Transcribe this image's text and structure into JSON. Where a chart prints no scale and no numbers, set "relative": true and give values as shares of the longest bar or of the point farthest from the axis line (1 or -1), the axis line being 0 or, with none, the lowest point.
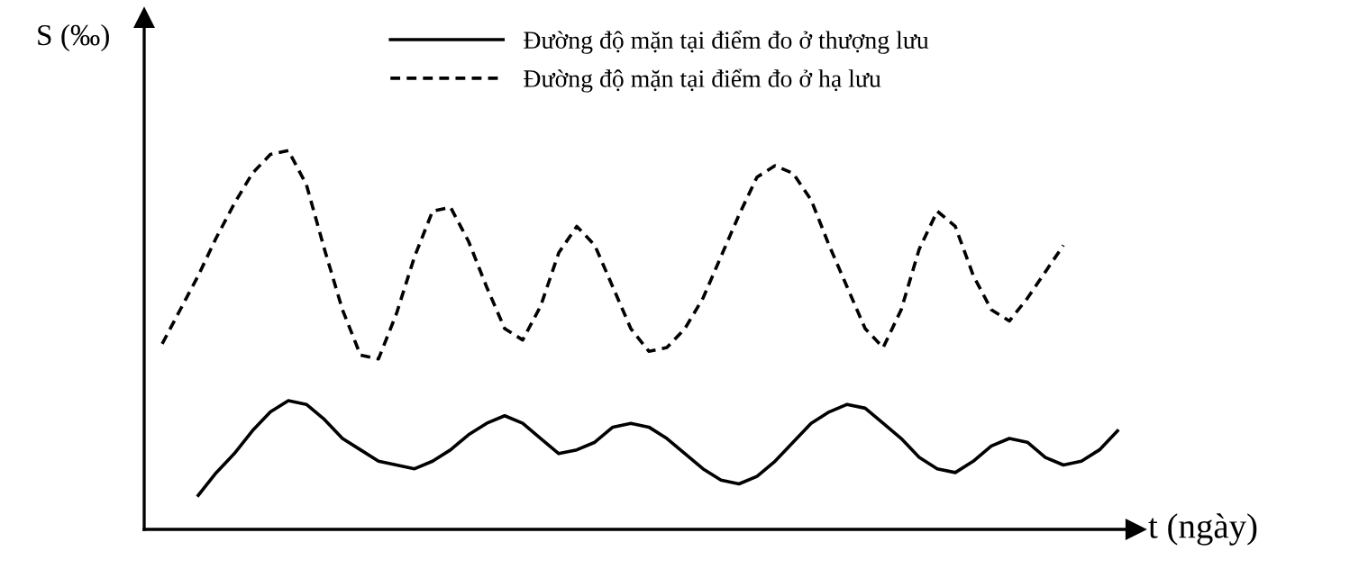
{
  "chart_data": {
    "type": "line",
    "relative": true,
    "xlabel": "t (ngày)",
    "ylabel": "S (‰)",
    "legend": "top",
    "grid": false,
    "marker": "none",
    "categories": [
      null,
      null,
      null,
      null,
      null,
      null,
      null,
      null,
      null,
      null,
      null,
      null,
      null,
      null,
      null,
      null,
      null,
      null,
      null,
      null,
      null,
      null,
      null,
      null,
      null,
      null,
      null,
      null,
      null,
      null,
      null,
      null,
      null,
      null,
      null,
      null,
      null,
      null,
      null,
      null,
      null,
      null,
      null,
      null,
      null,
      null,
      null,
      null,
      null,
      null,
      null,
      null,
      null,
      null
    ],
    "series": [
      {
        "name": "Đường độ mặn tại điểm đo ở thượng lưu",
        "color": "#000000",
        "line_style": "solid",
        "values": [
          null,
          null,
          0.09,
          0.15,
          0.2,
          0.26,
          0.31,
          0.34,
          0.33,
          0.29,
          0.24,
          0.21,
          0.18,
          0.17,
          0.16,
          0.18,
          0.21,
          0.25,
          0.28,
          0.3,
          0.28,
          0.24,
          0.2,
          0.21,
          0.23,
          0.27,
          0.28,
          0.27,
          0.24,
          0.2,
          0.16,
          0.13,
          0.12,
          0.14,
          0.18,
          0.23,
          0.28,
          0.31,
          0.33,
          0.32,
          0.28,
          0.24,
          0.19,
          0.16,
          0.15,
          0.18,
          0.22,
          0.24,
          0.23,
          0.19,
          0.17,
          0.18,
          0.21,
          0.26
        ]
      },
      {
        "name": "Đường độ mặn tại điểm đo ở hạ lưu",
        "color": "#000000",
        "line_style": "dashed",
        "values": [
          0.49,
          0.58,
          0.67,
          0.77,
          0.86,
          0.94,
          0.99,
          1.0,
          0.91,
          0.74,
          0.58,
          0.46,
          0.45,
          0.57,
          0.72,
          0.84,
          0.85,
          0.76,
          0.64,
          0.53,
          0.5,
          0.59,
          0.73,
          0.8,
          0.75,
          0.64,
          0.53,
          0.47,
          0.48,
          0.53,
          0.61,
          0.72,
          0.83,
          0.93,
          0.96,
          0.94,
          0.87,
          0.75,
          0.64,
          0.53,
          0.48,
          0.58,
          0.74,
          0.84,
          0.8,
          0.67,
          0.58,
          0.55,
          0.61,
          0.68,
          0.75,
          null,
          null,
          null
        ]
      }
    ]
  }
}
